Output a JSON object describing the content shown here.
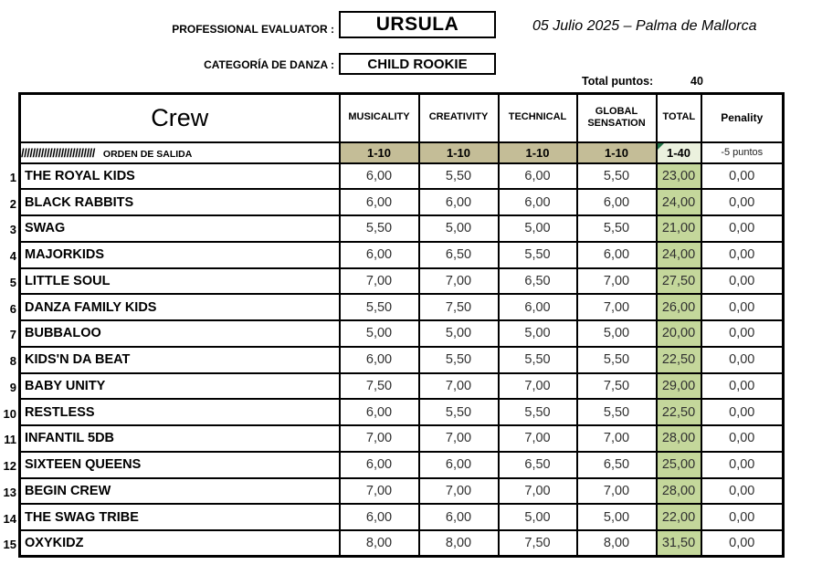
{
  "header": {
    "evaluator_label": "PROFESSIONAL EVALUATOR :",
    "evaluator_value": "URSULA",
    "date_location": "05 Julio 2025 – Palma de Mallorca",
    "category_label": "CATEGORÍA DE DANZA :",
    "category_value": "CHILD ROOKIE",
    "total_puntos_label": "Total puntos:",
    "total_puntos_value": "40"
  },
  "table": {
    "crew_header": "Crew",
    "columns": [
      "MUSICALITY",
      "CREATIVITY",
      "TECHNICAL",
      "GLOBAL SENSATION",
      "TOTAL",
      "Penality"
    ],
    "orden_row": {
      "hatch": "//////////////////////////",
      "label": "ORDEN DE SALIDA",
      "ranges": [
        "1-10",
        "1-10",
        "1-10",
        "1-10"
      ],
      "total_range": "1-40",
      "penalty_note": "-5 puntos"
    },
    "rows": [
      {
        "num": "1",
        "crew": "THE ROYAL KIDS",
        "scores": [
          "6,00",
          "5,50",
          "6,00",
          "5,50"
        ],
        "total": "23,00",
        "penalty": "0,00"
      },
      {
        "num": "2",
        "crew": "BLACK RABBITS",
        "scores": [
          "6,00",
          "6,00",
          "6,00",
          "6,00"
        ],
        "total": "24,00",
        "penalty": "0,00"
      },
      {
        "num": "3",
        "crew": "SWAG",
        "scores": [
          "5,50",
          "5,00",
          "5,00",
          "5,50"
        ],
        "total": "21,00",
        "penalty": "0,00"
      },
      {
        "num": "4",
        "crew": "MAJORKIDS",
        "scores": [
          "6,00",
          "6,50",
          "5,50",
          "6,00"
        ],
        "total": "24,00",
        "penalty": "0,00"
      },
      {
        "num": "5",
        "crew": "LITTLE SOUL",
        "scores": [
          "7,00",
          "7,00",
          "6,50",
          "7,00"
        ],
        "total": "27,50",
        "penalty": "0,00"
      },
      {
        "num": "6",
        "crew": "DANZA FAMILY KIDS",
        "scores": [
          "5,50",
          "7,50",
          "6,00",
          "7,00"
        ],
        "total": "26,00",
        "penalty": "0,00"
      },
      {
        "num": "7",
        "crew": "BUBBALOO",
        "scores": [
          "5,00",
          "5,00",
          "5,00",
          "5,00"
        ],
        "total": "20,00",
        "penalty": "0,00"
      },
      {
        "num": "8",
        "crew": "KIDS'N DA BEAT",
        "scores": [
          "6,00",
          "5,50",
          "5,50",
          "5,50"
        ],
        "total": "22,50",
        "penalty": "0,00"
      },
      {
        "num": "9",
        "crew": "BABY UNITY",
        "scores": [
          "7,50",
          "7,00",
          "7,00",
          "7,50"
        ],
        "total": "29,00",
        "penalty": "0,00"
      },
      {
        "num": "10",
        "crew": "RESTLESS",
        "scores": [
          "6,00",
          "5,50",
          "5,50",
          "5,50"
        ],
        "total": "22,50",
        "penalty": "0,00"
      },
      {
        "num": "11",
        "crew": "INFANTIL 5DB",
        "scores": [
          "7,00",
          "7,00",
          "7,00",
          "7,00"
        ],
        "total": "28,00",
        "penalty": "0,00"
      },
      {
        "num": "12",
        "crew": "SIXTEEN QUEENS",
        "scores": [
          "6,00",
          "6,00",
          "6,50",
          "6,50"
        ],
        "total": "25,00",
        "penalty": "0,00"
      },
      {
        "num": "13",
        "crew": "BEGIN CREW",
        "scores": [
          "7,00",
          "7,00",
          "7,00",
          "7,00"
        ],
        "total": "28,00",
        "penalty": "0,00"
      },
      {
        "num": "14",
        "crew": "THE SWAG TRIBE",
        "scores": [
          "6,00",
          "6,00",
          "5,00",
          "5,00"
        ],
        "total": "22,00",
        "penalty": "0,00"
      },
      {
        "num": "15",
        "crew": "OXYKIDZ",
        "scores": [
          "8,00",
          "8,00",
          "7,50",
          "8,00"
        ],
        "total": "31,50",
        "penalty": "0,00"
      }
    ]
  },
  "colors": {
    "range_tan": "#c4bd97",
    "total_green": "#c4d79b",
    "total_range_light_green": "#ebf1de",
    "comment_triangle_green": "#1e7145",
    "border_black": "#000000"
  }
}
